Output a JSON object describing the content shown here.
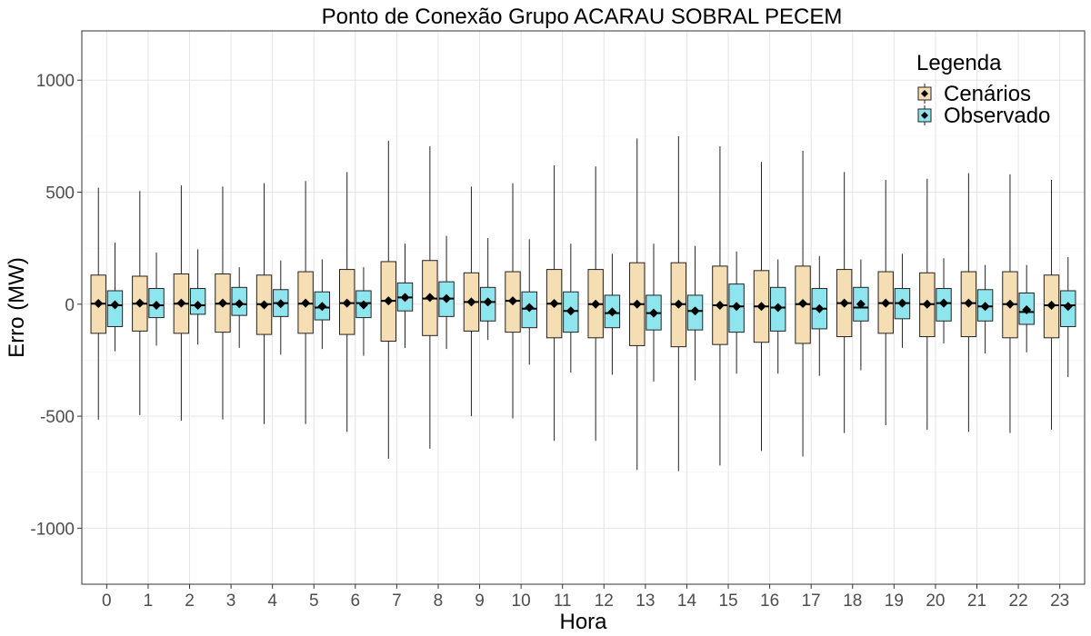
{
  "chart_data": {
    "type": "boxplot",
    "title": "Ponto de Conexão Grupo ACARAU SOBRAL PECEM",
    "xlabel": "Hora",
    "ylabel": "Erro (MW)",
    "ylim": [
      -1250,
      1220
    ],
    "yticks": [
      -1000,
      -500,
      0,
      500,
      1000
    ],
    "grid": true,
    "legend": {
      "title": "Legenda",
      "position": "top-right"
    },
    "categories": [
      "0",
      "1",
      "2",
      "3",
      "4",
      "5",
      "6",
      "7",
      "8",
      "9",
      "10",
      "11",
      "12",
      "13",
      "14",
      "15",
      "16",
      "17",
      "18",
      "19",
      "20",
      "21",
      "22",
      "23"
    ],
    "series": [
      {
        "name": "Cenários",
        "color": "#F5DEB3",
        "boxes": [
          {
            "min": -515,
            "q1": -130,
            "median": 2,
            "q3": 130,
            "max": 520,
            "mean": 3
          },
          {
            "min": -495,
            "q1": -120,
            "median": 2,
            "q3": 125,
            "max": 505,
            "mean": 5
          },
          {
            "min": -520,
            "q1": -130,
            "median": 2,
            "q3": 135,
            "max": 530,
            "mean": 5
          },
          {
            "min": -515,
            "q1": -125,
            "median": 2,
            "q3": 135,
            "max": 525,
            "mean": 5
          },
          {
            "min": -535,
            "q1": -135,
            "median": 0,
            "q3": 130,
            "max": 540,
            "mean": -3
          },
          {
            "min": -535,
            "q1": -130,
            "median": 2,
            "q3": 145,
            "max": 550,
            "mean": 5
          },
          {
            "min": -570,
            "q1": -135,
            "median": 5,
            "q3": 155,
            "max": 590,
            "mean": 5
          },
          {
            "min": -690,
            "q1": -165,
            "median": 15,
            "q3": 190,
            "max": 730,
            "mean": 15
          },
          {
            "min": -645,
            "q1": -140,
            "median": 25,
            "q3": 195,
            "max": 705,
            "mean": 30
          },
          {
            "min": -500,
            "q1": -120,
            "median": 10,
            "q3": 140,
            "max": 525,
            "mean": 10
          },
          {
            "min": -510,
            "q1": -125,
            "median": 15,
            "q3": 145,
            "max": 540,
            "mean": 15
          },
          {
            "min": -610,
            "q1": -150,
            "median": 2,
            "q3": 155,
            "max": 620,
            "mean": 3
          },
          {
            "min": -610,
            "q1": -150,
            "median": 0,
            "q3": 155,
            "max": 615,
            "mean": 0
          },
          {
            "min": -740,
            "q1": -185,
            "median": 0,
            "q3": 185,
            "max": 740,
            "mean": 0
          },
          {
            "min": -745,
            "q1": -190,
            "median": 0,
            "q3": 185,
            "max": 750,
            "mean": 0
          },
          {
            "min": -720,
            "q1": -180,
            "median": -5,
            "q3": 170,
            "max": 705,
            "mean": -5
          },
          {
            "min": -655,
            "q1": -170,
            "median": -10,
            "q3": 150,
            "max": 635,
            "mean": -10
          },
          {
            "min": -680,
            "q1": -175,
            "median": 0,
            "q3": 170,
            "max": 685,
            "mean": 3
          },
          {
            "min": -575,
            "q1": -145,
            "median": 5,
            "q3": 155,
            "max": 590,
            "mean": 5
          },
          {
            "min": -540,
            "q1": -130,
            "median": 5,
            "q3": 145,
            "max": 555,
            "mean": 5
          },
          {
            "min": -560,
            "q1": -145,
            "median": 0,
            "q3": 140,
            "max": 560,
            "mean": 0
          },
          {
            "min": -570,
            "q1": -145,
            "median": 5,
            "q3": 145,
            "max": 585,
            "mean": 5
          },
          {
            "min": -575,
            "q1": -150,
            "median": 0,
            "q3": 145,
            "max": 580,
            "mean": 0
          },
          {
            "min": -560,
            "q1": -150,
            "median": -5,
            "q3": 130,
            "max": 555,
            "mean": -5
          }
        ]
      },
      {
        "name": "Observado",
        "color": "#8EE5EE",
        "boxes": [
          {
            "min": -210,
            "q1": -100,
            "median": -5,
            "q3": 60,
            "max": 275,
            "mean": -3
          },
          {
            "min": -185,
            "q1": -60,
            "median": -5,
            "q3": 70,
            "max": 230,
            "mean": -5
          },
          {
            "min": -180,
            "q1": -45,
            "median": -5,
            "q3": 70,
            "max": 245,
            "mean": -5
          },
          {
            "min": -195,
            "q1": -50,
            "median": 0,
            "q3": 75,
            "max": 165,
            "mean": 2
          },
          {
            "min": -225,
            "q1": -55,
            "median": 5,
            "q3": 65,
            "max": 195,
            "mean": 2
          },
          {
            "min": -200,
            "q1": -70,
            "median": -15,
            "q3": 55,
            "max": 200,
            "mean": -10
          },
          {
            "min": -230,
            "q1": -60,
            "median": 5,
            "q3": 60,
            "max": 165,
            "mean": -3
          },
          {
            "min": -195,
            "q1": -30,
            "median": 30,
            "q3": 95,
            "max": 270,
            "mean": 30
          },
          {
            "min": -200,
            "q1": -55,
            "median": 25,
            "q3": 100,
            "max": 305,
            "mean": 25
          },
          {
            "min": -160,
            "q1": -75,
            "median": 10,
            "q3": 75,
            "max": 295,
            "mean": 10
          },
          {
            "min": -270,
            "q1": -105,
            "median": -20,
            "q3": 55,
            "max": 290,
            "mean": -15
          },
          {
            "min": -305,
            "q1": -125,
            "median": -30,
            "q3": 55,
            "max": 270,
            "mean": -30
          },
          {
            "min": -315,
            "q1": -105,
            "median": -40,
            "q3": 40,
            "max": 225,
            "mean": -35
          },
          {
            "min": -345,
            "q1": -115,
            "median": -40,
            "q3": 40,
            "max": 270,
            "mean": -40
          },
          {
            "min": -340,
            "q1": -115,
            "median": -30,
            "q3": 40,
            "max": 260,
            "mean": -30
          },
          {
            "min": -310,
            "q1": -125,
            "median": -10,
            "q3": 90,
            "max": 235,
            "mean": -10
          },
          {
            "min": -310,
            "q1": -120,
            "median": -15,
            "q3": 75,
            "max": 200,
            "mean": -15
          },
          {
            "min": -320,
            "q1": -110,
            "median": -20,
            "q3": 70,
            "max": 215,
            "mean": -20
          },
          {
            "min": -295,
            "q1": -75,
            "median": -15,
            "q3": 75,
            "max": 200,
            "mean": 0
          },
          {
            "min": -195,
            "q1": -65,
            "median": 5,
            "q3": 70,
            "max": 225,
            "mean": 5
          },
          {
            "min": -175,
            "q1": -75,
            "median": 5,
            "q3": 70,
            "max": 205,
            "mean": 5
          },
          {
            "min": -220,
            "q1": -75,
            "median": -10,
            "q3": 65,
            "max": 175,
            "mean": -10
          },
          {
            "min": -215,
            "q1": -90,
            "median": -35,
            "q3": 50,
            "max": 175,
            "mean": -25
          },
          {
            "min": -325,
            "q1": -100,
            "median": -5,
            "q3": 60,
            "max": 210,
            "mean": -10
          }
        ]
      }
    ]
  }
}
